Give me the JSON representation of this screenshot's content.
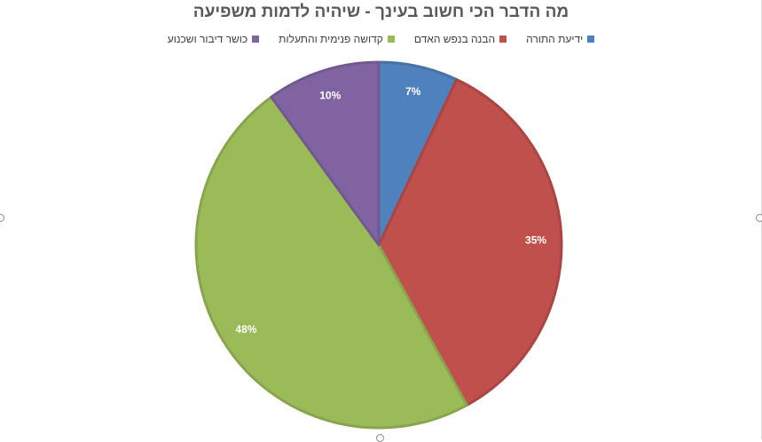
{
  "chart_data": {
    "type": "pie",
    "title": "מה הדבר הכי חשוב בעינך - שיהיה לדמות משפיעה",
    "legend_position": "top",
    "series": [
      {
        "name": "ידיעת התורה",
        "value": 7,
        "label": "7%",
        "color": "#4F81BD"
      },
      {
        "name": "הבנה בנפש האדם",
        "value": 35,
        "label": "35%",
        "color": "#C0504D"
      },
      {
        "name": "קדושה פנימית והתעלות",
        "value": 48,
        "label": "48%",
        "color": "#9BBB59"
      },
      {
        "name": "כושר דיבור ושכנוע",
        "value": 10,
        "label": "10%",
        "color": "#8064A2"
      }
    ]
  }
}
